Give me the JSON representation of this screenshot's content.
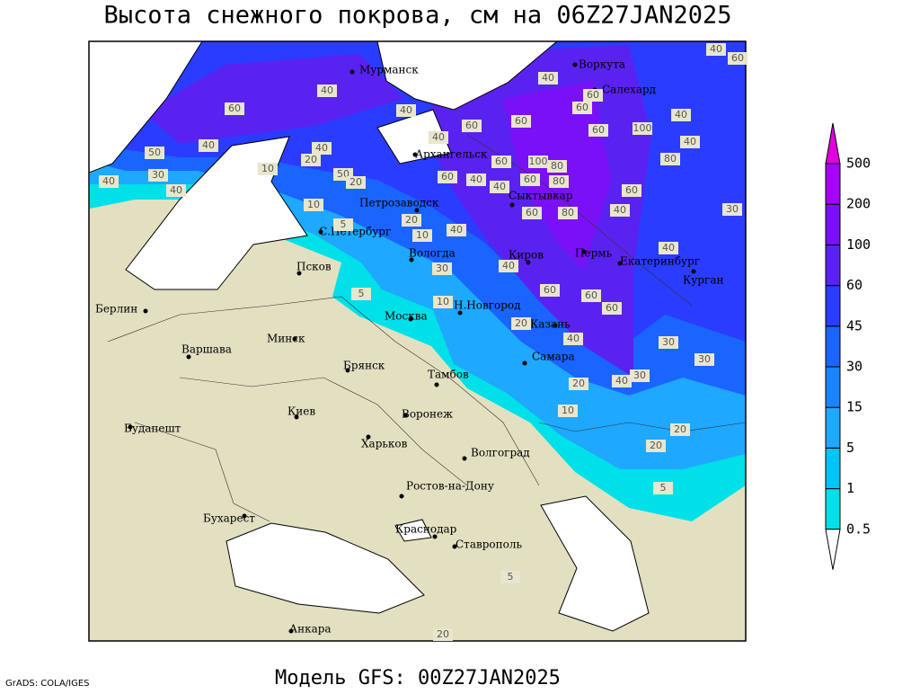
{
  "title": "Высота снежного покрова, см на 06Z27JAN2025",
  "footer": {
    "model": "Модель GFS: 00Z27JAN2025",
    "credit": "GrADS: COLA/IGES"
  },
  "legend": {
    "levels": [
      0.5,
      1,
      5,
      15,
      30,
      45,
      60,
      100,
      200,
      500
    ],
    "colors": [
      "#a8f4f4",
      "#00e0e8",
      "#00c4f8",
      "#1ea8ff",
      "#1a84ff",
      "#1a64ff",
      "#2a3cff",
      "#5a22f0",
      "#7a10f8",
      "#a800f8",
      "#e000e0"
    ]
  },
  "cities": [
    "Мурманск",
    "Воркута",
    "Салехард",
    "Архангельск",
    "Петрозаводск",
    "Сыктывкар",
    "С.Петербург",
    "Вологда",
    "Киров",
    "Пермь",
    "Екатеринбург",
    "Курган",
    "Псков",
    "Берлин",
    "Н.Новгород",
    "Москва",
    "Казань",
    "Минск",
    "Варшава",
    "Самара",
    "Брянск",
    "Тамбов",
    "Киев",
    "Воронеж",
    "Будапешт",
    "Харьков",
    "Волгоград",
    "Ростов-на-Дону",
    "Бухарест",
    "Краснодар",
    "Ставрополь",
    "Анкара"
  ],
  "contour_labels": [
    40,
    60,
    40,
    40,
    60,
    40,
    60,
    60,
    100,
    40,
    60,
    40,
    60,
    60,
    40,
    40,
    40,
    50,
    20,
    100,
    60,
    80,
    80,
    50,
    60,
    40,
    20,
    40,
    30,
    40,
    80,
    40,
    60,
    60,
    10,
    40,
    60,
    80,
    20,
    30,
    10,
    40,
    40,
    30,
    40,
    5,
    60,
    60,
    10,
    60,
    20,
    40,
    30,
    30,
    20,
    40,
    30,
    10,
    20,
    20,
    5,
    5,
    20,
    10,
    5
  ]
}
